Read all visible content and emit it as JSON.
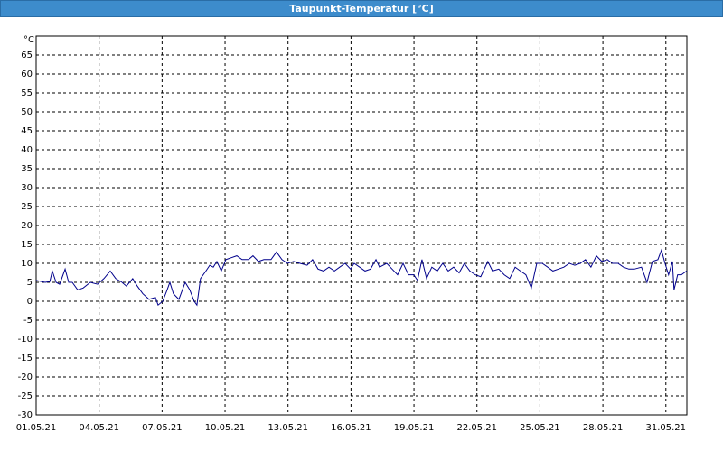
{
  "chart_data": {
    "type": "line",
    "title": "Taupunkt-Temperatur [°C]",
    "y_label": "°C",
    "xlim": [
      0,
      31
    ],
    "ylim": [
      -30,
      70
    ],
    "grid": true,
    "xticks": [
      {
        "value": 0,
        "label": "01.05.21"
      },
      {
        "value": 3,
        "label": "04.05.21"
      },
      {
        "value": 6,
        "label": "07.05.21"
      },
      {
        "value": 9,
        "label": "10.05.21"
      },
      {
        "value": 12,
        "label": "13.05.21"
      },
      {
        "value": 15,
        "label": "16.05.21"
      },
      {
        "value": 18,
        "label": "19.05.21"
      },
      {
        "value": 21,
        "label": "22.05.21"
      },
      {
        "value": 24,
        "label": "25.05.21"
      },
      {
        "value": 27,
        "label": "28.05.21"
      },
      {
        "value": 30,
        "label": "31.05.21"
      }
    ],
    "yticks": [
      -30,
      -25,
      -20,
      -15,
      -10,
      -5,
      0,
      5,
      10,
      15,
      20,
      25,
      30,
      35,
      40,
      45,
      50,
      55,
      60,
      65
    ],
    "series": [
      {
        "color": "#00008b",
        "x": [
          0,
          0.43,
          0.65,
          0.77,
          0.95,
          1.12,
          1.38,
          1.55,
          1.72,
          1.98,
          2.24,
          2.58,
          2.93,
          3.23,
          3.53,
          3.79,
          4.09,
          4.3,
          4.6,
          4.82,
          5.08,
          5.38,
          5.68,
          5.81,
          6.03,
          6.24,
          6.37,
          6.54,
          6.8,
          7.1,
          7.32,
          7.53,
          7.66,
          7.83,
          8.09,
          8.27,
          8.44,
          8.61,
          8.82,
          9.04,
          9.3,
          9.56,
          9.81,
          10.12,
          10.33,
          10.59,
          10.85,
          11.19,
          11.45,
          11.71,
          11.97,
          12.27,
          12.57,
          12.91,
          13.17,
          13.43,
          13.69,
          13.95,
          14.21,
          14.46,
          14.72,
          14.98,
          15.15,
          15.41,
          15.67,
          15.93,
          16.19,
          16.36,
          16.7,
          16.96,
          17.22,
          17.48,
          17.74,
          17.99,
          18.17,
          18.38,
          18.6,
          18.85,
          19.11,
          19.37,
          19.63,
          19.89,
          20.15,
          20.4,
          20.66,
          20.92,
          21.18,
          21.52,
          21.74,
          22.04,
          22.3,
          22.56,
          22.82,
          23.07,
          23.33,
          23.59,
          23.85,
          24.11,
          24.37,
          24.62,
          24.88,
          25.14,
          25.4,
          25.66,
          25.92,
          26.17,
          26.43,
          26.69,
          26.95,
          27.21,
          27.46,
          27.72,
          27.98,
          28.24,
          28.5,
          28.84,
          29.1,
          29.36,
          29.62,
          29.79,
          29.96,
          30.13,
          30.31,
          30.39,
          30.56,
          30.74,
          30.99
        ],
        "values": [
          5.5,
          5,
          5.2,
          8,
          5,
          4.5,
          8.5,
          5,
          5,
          3,
          3.5,
          5,
          4.5,
          6,
          8,
          6,
          5,
          4,
          6,
          4,
          2,
          0.5,
          1,
          -1,
          0,
          3,
          5,
          2,
          0.5,
          5,
          3,
          0,
          -1,
          6,
          8,
          9.5,
          9,
          10.5,
          8,
          11,
          11.5,
          12,
          11,
          11,
          12,
          10.5,
          11,
          11,
          13,
          11,
          10,
          10.5,
          10,
          9.5,
          11,
          8.5,
          8,
          9,
          8,
          9,
          10,
          8.5,
          10,
          9,
          8,
          8.5,
          11,
          9,
          10,
          8.5,
          7,
          10,
          7,
          7,
          5.5,
          11,
          6,
          9,
          8,
          10,
          8,
          9,
          7.5,
          10,
          8,
          7,
          6.5,
          10.5,
          8,
          8.5,
          7,
          6,
          9,
          8,
          7,
          3.5,
          10,
          10,
          9,
          8,
          8.5,
          9,
          10,
          9.5,
          10,
          11,
          9,
          12,
          10.5,
          11,
          10,
          10,
          9,
          8.5,
          8.5,
          9,
          5,
          10.5,
          11,
          13.5,
          10,
          7,
          10.5,
          3,
          7,
          7,
          8
        ]
      }
    ]
  }
}
